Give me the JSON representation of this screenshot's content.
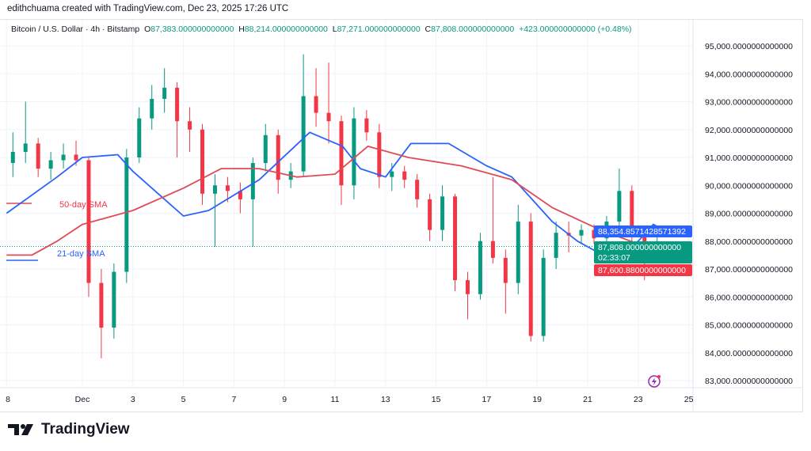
{
  "credit": "edithchuama created with TradingView.com, Dec 23, 2025 17:26 UTC",
  "legend": {
    "symbol": "Bitcoin / U.S. Dollar · 4h · Bitstamp",
    "o_label": "O",
    "o": "87,383.000000000000",
    "h_label": "H",
    "h": "88,214.000000000000",
    "l_label": "L",
    "l": "87,271.000000000000",
    "c_label": "C",
    "c": "87,808.000000000000",
    "change": "+423.000000000000 (+0.48%)"
  },
  "price_labels": {
    "sma21": "88,354.8571428571392",
    "last": "87,808.000000000000",
    "countdown": "02:33:07",
    "sma50": "87,600.8800000000000"
  },
  "brand": "TradingView",
  "colors": {
    "up": "#089981",
    "down": "#f23645",
    "sma21": "#2962ff",
    "sma50": "#e04a55",
    "sma21_label": "#2962ff",
    "sma50_label": "#f23645"
  },
  "chart_data": {
    "type": "candlestick",
    "title": "Bitcoin / U.S. Dollar · 4h · Bitstamp",
    "ylim": [
      82700,
      95600
    ],
    "y_ticks": [
      "95,000.0000000000000",
      "94,000.0000000000000",
      "93,000.0000000000000",
      "92,000.0000000000000",
      "91,000.0000000000000",
      "90,000.0000000000000",
      "89,000.0000000000000",
      "88,000.0000000000000",
      "87,000.0000000000000",
      "86,000.0000000000000",
      "85,000.0000000000000",
      "84,000.0000000000000",
      "83,000.0000000000000"
    ],
    "y_tick_values": [
      95000,
      94000,
      93000,
      92000,
      91000,
      90000,
      89000,
      88000,
      87000,
      86000,
      85000,
      84000,
      83000
    ],
    "x_ticks": [
      "8",
      "Dec",
      "3",
      "5",
      "7",
      "9",
      "11",
      "13",
      "15",
      "17",
      "19",
      "21",
      "23",
      "25"
    ],
    "x_tick_days": [
      0,
      3,
      5,
      7,
      9,
      11,
      13,
      15,
      17,
      19,
      21,
      23,
      25,
      27
    ],
    "grid": true,
    "candle_period_days": 0.5,
    "ohlc": [
      [
        90800,
        91900,
        90300,
        91200
      ],
      [
        91200,
        93000,
        90800,
        91500
      ],
      [
        91500,
        91700,
        90300,
        90600
      ],
      [
        90600,
        91200,
        90200,
        90900
      ],
      [
        90900,
        91500,
        90600,
        91100
      ],
      [
        91100,
        91600,
        90700,
        90900
      ],
      [
        90900,
        91000,
        86000,
        86500
      ],
      [
        86500,
        87000,
        83800,
        84900
      ],
      [
        84900,
        87200,
        84500,
        86900
      ],
      [
        86900,
        91300,
        86500,
        91000
      ],
      [
        91000,
        92800,
        90800,
        92400
      ],
      [
        92400,
        93600,
        92000,
        93100
      ],
      [
        93100,
        94200,
        92600,
        93500
      ],
      [
        93500,
        93700,
        91000,
        92300
      ],
      [
        92300,
        92800,
        91200,
        92000
      ],
      [
        92000,
        92200,
        89300,
        89700
      ],
      [
        89700,
        90400,
        87800,
        90000
      ],
      [
        90000,
        90300,
        89400,
        89800
      ],
      [
        89800,
        90100,
        89000,
        89500
      ],
      [
        89500,
        91000,
        87800,
        90800
      ],
      [
        90800,
        92200,
        90500,
        91800
      ],
      [
        91800,
        92000,
        89700,
        90200
      ],
      [
        90200,
        90800,
        89900,
        90500
      ],
      [
        90500,
        94700,
        90300,
        93200
      ],
      [
        93200,
        94200,
        92100,
        92600
      ],
      [
        92600,
        94400,
        91500,
        92300
      ],
      [
        92300,
        92500,
        89300,
        90000
      ],
      [
        90000,
        92800,
        89500,
        92400
      ],
      [
        92400,
        92700,
        91600,
        91900
      ],
      [
        91900,
        92200,
        89900,
        90300
      ],
      [
        90300,
        90800,
        89800,
        90500
      ],
      [
        90500,
        90700,
        89900,
        90200
      ],
      [
        90200,
        90400,
        89200,
        89500
      ],
      [
        89500,
        89700,
        88000,
        88400
      ],
      [
        88400,
        90000,
        88000,
        89600
      ],
      [
        89600,
        89700,
        86200,
        86600
      ],
      [
        86600,
        86900,
        85200,
        86100
      ],
      [
        86100,
        88300,
        85900,
        88000
      ],
      [
        88000,
        90300,
        87200,
        87400
      ],
      [
        87400,
        87700,
        85400,
        86500
      ],
      [
        86500,
        89300,
        86100,
        88700
      ],
      [
        88700,
        89000,
        84400,
        84600
      ],
      [
        84600,
        87700,
        84400,
        87400
      ],
      [
        87400,
        88700,
        87000,
        88300
      ],
      [
        88300,
        88700,
        87600,
        88200
      ],
      [
        88200,
        88600,
        87900,
        88400
      ],
      [
        88400,
        88600,
        87900,
        88100
      ],
      [
        88100,
        88900,
        87800,
        88700
      ],
      [
        88700,
        90600,
        88500,
        89800
      ],
      [
        89800,
        90000,
        87900,
        88200
      ],
      [
        88200,
        88400,
        86600,
        87400
      ],
      [
        87383,
        88214,
        87271,
        87808
      ]
    ],
    "series": [
      {
        "name": "21-day SMA",
        "days": [
          0,
          2,
          3,
          4.4,
          5,
          7,
          8,
          10,
          12,
          13.3,
          14,
          15,
          16,
          17.5,
          19,
          20,
          21.6,
          22.6,
          24,
          25,
          25.6,
          26.1
        ],
        "values": [
          89000,
          90300,
          91000,
          91100,
          90500,
          88900,
          89100,
          90200,
          91900,
          91400,
          90600,
          90300,
          91500,
          91500,
          90700,
          90300,
          88700,
          88000,
          87300,
          88000,
          88600,
          88350
        ]
      },
      {
        "name": "50-day SMA",
        "days": [
          0,
          1,
          2,
          3,
          5,
          7,
          8.5,
          10,
          11.5,
          13,
          14.3,
          15.9,
          18,
          20,
          21.6,
          23.5,
          25,
          26.1
        ],
        "values": [
          87500,
          87500,
          88000,
          88600,
          89100,
          89900,
          90600,
          90600,
          90300,
          90400,
          91400,
          91000,
          90700,
          90200,
          89200,
          88400,
          87900,
          87600
        ]
      }
    ],
    "annotations": {
      "sma50_label": "50-day SMA",
      "sma21_label": "21-day SMA"
    },
    "last_price": 87808
  }
}
